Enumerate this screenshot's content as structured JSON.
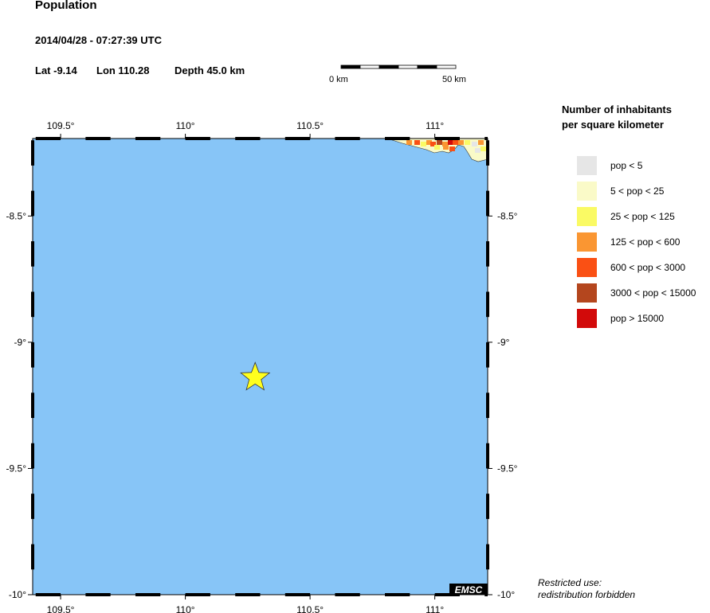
{
  "header": {
    "title": "Population",
    "datetime": "2014/04/28 - 07:27:39 UTC",
    "lat": "Lat -9.14",
    "lon": "Lon 110.28",
    "depth": "Depth  45.0 km"
  },
  "scale_bar": {
    "start_label": "0 km",
    "end_label": "50 km"
  },
  "map": {
    "lon_range": [
      109.388,
      111.212
    ],
    "lat_range": [
      -10.0,
      -8.193
    ],
    "ocean_color": "#87c5f7",
    "epicenter": {
      "lat": -9.14,
      "lon": 110.28,
      "color": "#ffff1e",
      "icon": "star-icon"
    },
    "x_ticks": [
      {
        "v": 109.5,
        "label": "109.5°"
      },
      {
        "v": 110,
        "label": "110°"
      },
      {
        "v": 110.5,
        "label": "110.5°"
      },
      {
        "v": 111,
        "label": "111°"
      }
    ],
    "y_ticks": [
      {
        "v": -8.5,
        "label": "-8.5°"
      },
      {
        "v": -9,
        "label": "-9°"
      },
      {
        "v": -9.5,
        "label": "-9.5°"
      },
      {
        "v": -10,
        "label": "-10°"
      }
    ],
    "logo": "EMSC"
  },
  "legend": {
    "title_line1": "Number of inhabitants",
    "title_line2": "per square kilometer",
    "items": [
      {
        "label": "pop < 5",
        "color": "#e6e6e6"
      },
      {
        "label": "5 < pop < 25",
        "color": "#fafac8"
      },
      {
        "label": "25 < pop < 125",
        "color": "#fafa64"
      },
      {
        "label": "125 < pop < 600",
        "color": "#fa9632"
      },
      {
        "label": "600 < pop < 3000",
        "color": "#fa5014"
      },
      {
        "label": "3000 < pop < 15000",
        "color": "#b4461e"
      },
      {
        "label": "pop > 15000",
        "color": "#d20a0a"
      }
    ]
  },
  "footer": {
    "line1": "Restricted use:",
    "line2": "redistribution forbidden"
  }
}
